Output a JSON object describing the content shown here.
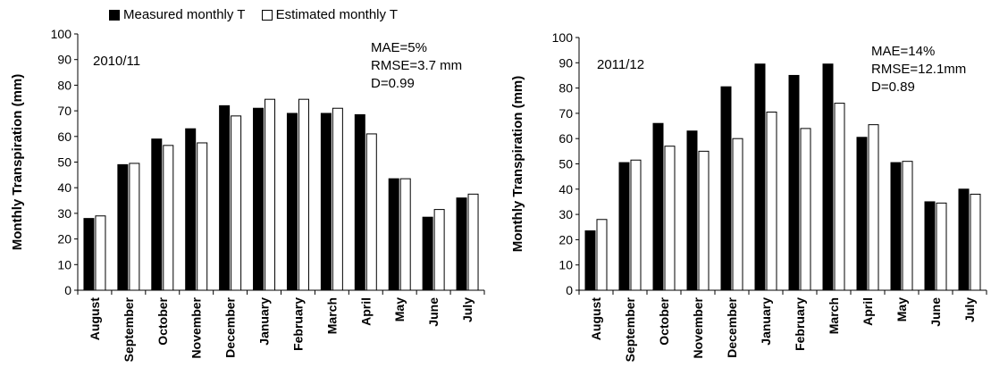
{
  "legend": {
    "measured_label": "Measured monthly T",
    "estimated_label": "Estimated monthly T",
    "measured_color": "#000000",
    "estimated_color": "#ffffff"
  },
  "chart_data": [
    {
      "type": "bar",
      "panel_label": "2010/11",
      "ylabel": "Monthly Transpiration (mm)",
      "ylim": [
        0,
        100
      ],
      "yticks": [
        0,
        10,
        20,
        30,
        40,
        50,
        60,
        70,
        80,
        90,
        100
      ],
      "categories": [
        "August",
        "September",
        "October",
        "November",
        "December",
        "January",
        "February",
        "March",
        "April",
        "May",
        "June",
        "July"
      ],
      "series": [
        {
          "name": "Measured monthly T",
          "values": [
            28,
            49,
            59,
            63,
            72,
            71,
            69,
            69,
            68.5,
            43.5,
            28.5,
            36
          ]
        },
        {
          "name": "Estimated monthly T",
          "values": [
            29,
            49.5,
            56.5,
            57.5,
            68,
            74.5,
            74.5,
            71,
            61,
            43.5,
            31.5,
            37.5
          ]
        }
      ],
      "stats": [
        "MAE=5%",
        "RMSE=3.7 mm",
        "D=0.99"
      ],
      "grid": false,
      "legend_position": "top"
    },
    {
      "type": "bar",
      "panel_label": "2011/12",
      "ylabel": "Monthly Transpiration (mm)",
      "ylim": [
        0,
        100
      ],
      "yticks": [
        0,
        10,
        20,
        30,
        40,
        50,
        60,
        70,
        80,
        90,
        100
      ],
      "categories": [
        "August",
        "September",
        "October",
        "November",
        "December",
        "January",
        "February",
        "March",
        "April",
        "May",
        "June",
        "July"
      ],
      "series": [
        {
          "name": "Measured monthly T",
          "values": [
            23.5,
            50.5,
            66,
            63,
            80.5,
            89.5,
            85,
            89.5,
            60.5,
            50.5,
            35,
            40
          ]
        },
        {
          "name": "Estimated monthly T",
          "values": [
            28,
            51.5,
            57,
            55,
            60,
            70.5,
            64,
            74,
            65.5,
            51,
            34.5,
            38
          ]
        }
      ],
      "stats": [
        "MAE=14%",
        "RMSE=12.1mm",
        "D=0.89"
      ],
      "grid": false
    }
  ]
}
